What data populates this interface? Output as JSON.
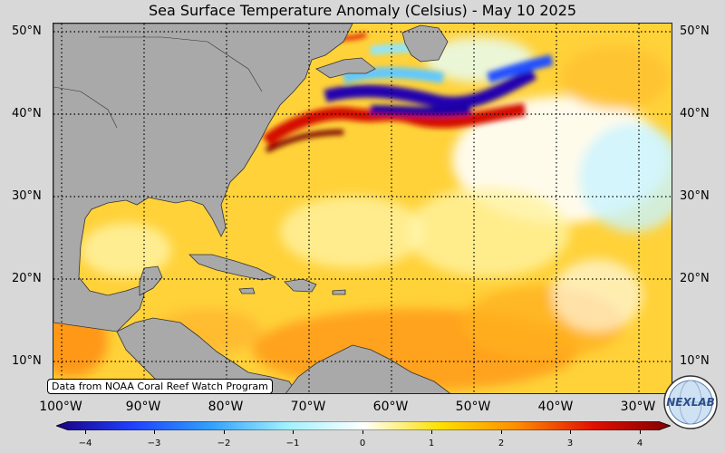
{
  "title": "Sea Surface Temperature Anomaly (Celsius) - May 10 2025",
  "credit": "Data from NOAA Coral Reef Watch Program",
  "logo": {
    "text": "NEXLAB",
    "icon": "nexlab-globe-logo"
  },
  "latitude_labels": [
    "50°N",
    "40°N",
    "30°N",
    "20°N",
    "10°N"
  ],
  "longitude_labels": [
    "100°W",
    "90°W",
    "80°W",
    "70°W",
    "60°W",
    "50°W",
    "40°W",
    "30°W"
  ],
  "colorbar": {
    "ticks": [
      "−4",
      "−3",
      "−2",
      "−1",
      "0",
      "1",
      "2",
      "3",
      "4"
    ],
    "range": [
      -4,
      4
    ],
    "colors": [
      "#1a0080",
      "#2040ff",
      "#30a0ff",
      "#a0f0ff",
      "#ffffff",
      "#ffe000",
      "#ff8c00",
      "#e01000",
      "#800000"
    ]
  },
  "map": {
    "land_color": "#a9a9a9",
    "ocean_base_color": "#ffd23a"
  }
}
